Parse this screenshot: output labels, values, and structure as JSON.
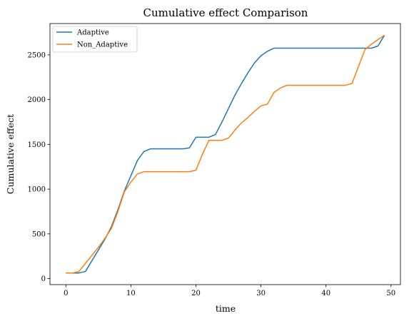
{
  "chart_data": {
    "type": "line",
    "title": "Cumulative effect Comparison",
    "xlabel": "time",
    "ylabel": "Cumulative effect",
    "xlim": [
      -2.45,
      51.45
    ],
    "ylim": [
      -67,
      2850
    ],
    "xticks": [
      0,
      10,
      20,
      30,
      40,
      50
    ],
    "yticks": [
      0,
      500,
      1000,
      1500,
      2000,
      2500
    ],
    "legend_position": "upper-left",
    "grid": false,
    "series": [
      {
        "name": "Adaptive",
        "color": "#1f77b4",
        "x": [
          0,
          1,
          2,
          3,
          4,
          5,
          6,
          7,
          8,
          9,
          10,
          11,
          12,
          13,
          14,
          15,
          16,
          17,
          18,
          19,
          20,
          21,
          22,
          23,
          24,
          25,
          26,
          27,
          28,
          29,
          30,
          31,
          32,
          33,
          34,
          35,
          36,
          37,
          38,
          39,
          40,
          41,
          42,
          43,
          44,
          45,
          46,
          47,
          48,
          49
        ],
        "y": [
          63,
          63,
          63,
          80,
          200,
          320,
          440,
          580,
          770,
          980,
          1150,
          1320,
          1420,
          1450,
          1450,
          1450,
          1450,
          1450,
          1450,
          1460,
          1580,
          1580,
          1580,
          1610,
          1750,
          1900,
          2050,
          2180,
          2300,
          2410,
          2490,
          2540,
          2575,
          2575,
          2575,
          2575,
          2575,
          2575,
          2575,
          2575,
          2575,
          2575,
          2575,
          2575,
          2575,
          2575,
          2575,
          2575,
          2600,
          2720
        ]
      },
      {
        "name": "Non_Adaptive",
        "color": "#ff7f0e",
        "x": [
          0,
          1,
          2,
          3,
          4,
          5,
          6,
          7,
          8,
          9,
          10,
          11,
          12,
          13,
          14,
          15,
          16,
          17,
          18,
          19,
          20,
          21,
          22,
          23,
          24,
          25,
          26,
          27,
          28,
          29,
          30,
          31,
          32,
          33,
          34,
          35,
          36,
          37,
          38,
          39,
          40,
          41,
          42,
          43,
          44,
          45,
          46,
          47,
          48,
          49
        ],
        "y": [
          63,
          63,
          80,
          170,
          260,
          350,
          450,
          560,
          750,
          970,
          1080,
          1170,
          1195,
          1195,
          1195,
          1195,
          1195,
          1195,
          1195,
          1195,
          1210,
          1390,
          1545,
          1545,
          1545,
          1570,
          1660,
          1740,
          1800,
          1870,
          1930,
          1950,
          2080,
          2130,
          2160,
          2160,
          2160,
          2160,
          2160,
          2160,
          2160,
          2160,
          2160,
          2160,
          2180,
          2370,
          2560,
          2620,
          2670,
          2720
        ]
      }
    ]
  }
}
